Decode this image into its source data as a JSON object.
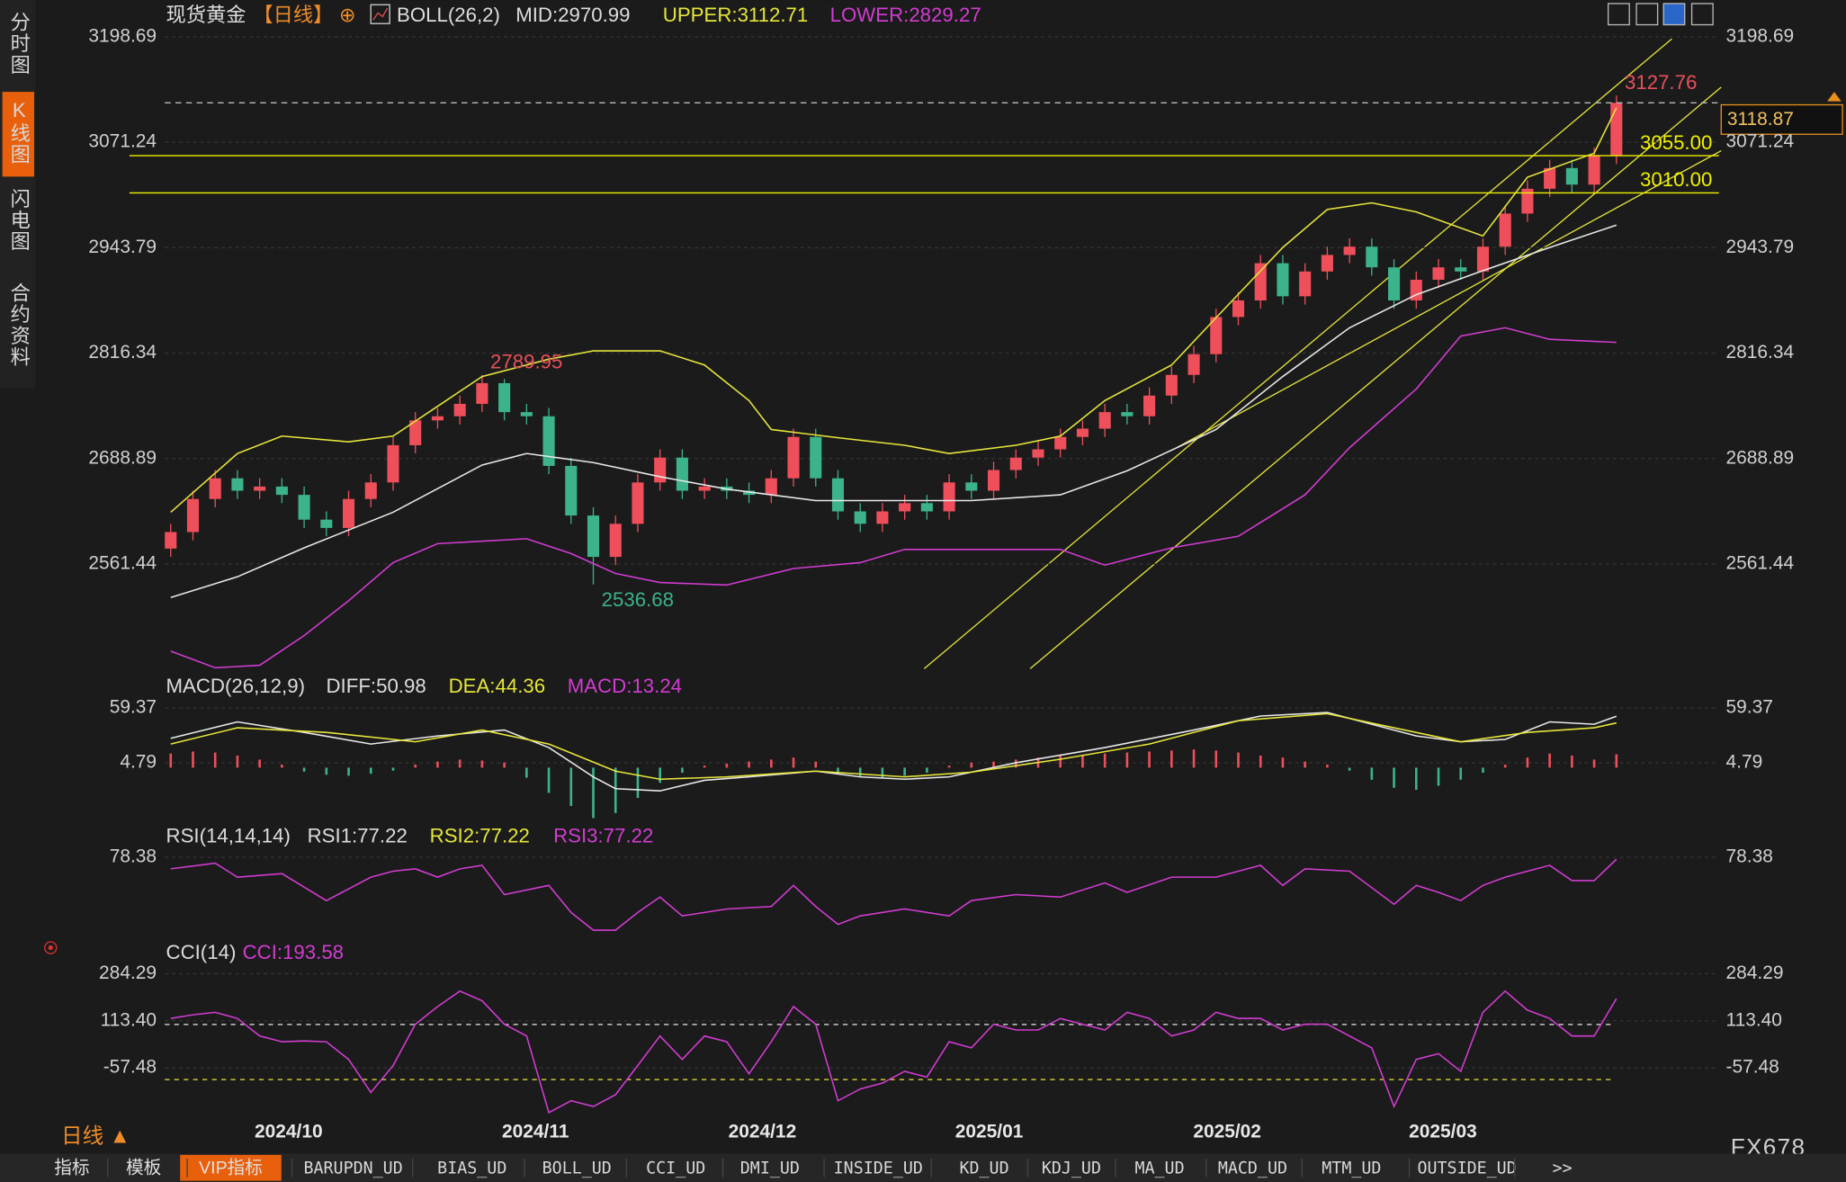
{
  "chart_data": [
    {
      "type": "candlestick",
      "legend": [
        {
          "text": "现货黄金",
          "color": "#dddddd"
        },
        {
          "text": "【日线】",
          "color": "#f08c28"
        },
        {
          "text": "⊕",
          "color": "#f08c28"
        },
        {
          "text": "BOLL(26,2)",
          "color": "#dddddd"
        },
        {
          "text": "MID:2970.99",
          "color": "#dddddd"
        },
        {
          "text": "UPPER:3112.71",
          "color": "#e6e63c"
        },
        {
          "text": "LOWER:2829.27",
          "color": "#d23cd2"
        }
      ],
      "xlim": [
        0,
        65
      ],
      "xticks": [
        {
          "value": 5.3,
          "label": "2024/10"
        },
        {
          "value": 16.4,
          "label": "2024/11"
        },
        {
          "value": 26.6,
          "label": "2024/12"
        },
        {
          "value": 36.8,
          "label": "2025/01"
        },
        {
          "value": 47.5,
          "label": "2025/02"
        },
        {
          "value": 57.2,
          "label": "2025/03"
        }
      ],
      "ylim": [
        2432,
        3236
      ],
      "yticks": [
        3198.69,
        3071.24,
        2943.79,
        2816.34,
        2688.89,
        2561.44
      ],
      "grid": true,
      "up_color": "#ef4f5a",
      "down_color": "#3cb38a",
      "open": [
        2580,
        2600,
        2640,
        2665,
        2650,
        2655,
        2645,
        2615,
        2605,
        2640,
        2660,
        2705,
        2735,
        2740,
        2755,
        2780,
        2745,
        2740,
        2680,
        2620,
        2570,
        2610,
        2660,
        2690,
        2650,
        2655,
        2650,
        2645,
        2665,
        2715,
        2665,
        2625,
        2610,
        2625,
        2635,
        2625,
        2660,
        2650,
        2675,
        2690,
        2700,
        2715,
        2725,
        2745,
        2740,
        2765,
        2790,
        2815,
        2860,
        2880,
        2925,
        2885,
        2915,
        2935,
        2945,
        2920,
        2880,
        2905,
        2920,
        2915,
        2945,
        2985,
        3015,
        3040,
        3020,
        3055
      ],
      "high": [
        2610,
        2650,
        2675,
        2675,
        2665,
        2665,
        2655,
        2625,
        2650,
        2670,
        2715,
        2745,
        2750,
        2765,
        2789.95,
        2785,
        2755,
        2750,
        2690,
        2630,
        2620,
        2670,
        2700,
        2700,
        2665,
        2665,
        2660,
        2675,
        2725,
        2725,
        2675,
        2635,
        2635,
        2645,
        2645,
        2670,
        2670,
        2685,
        2700,
        2710,
        2725,
        2735,
        2755,
        2755,
        2775,
        2800,
        2825,
        2870,
        2890,
        2935,
        2935,
        2925,
        2945,
        2955,
        2955,
        2930,
        2915,
        2930,
        2930,
        2955,
        2995,
        3025,
        3050,
        3050,
        3065,
        3127.76
      ],
      "low": [
        2570,
        2590,
        2630,
        2640,
        2640,
        2635,
        2605,
        2595,
        2595,
        2630,
        2650,
        2695,
        2725,
        2730,
        2745,
        2735,
        2730,
        2670,
        2610,
        2536.68,
        2560,
        2600,
        2650,
        2640,
        2640,
        2640,
        2635,
        2635,
        2655,
        2655,
        2615,
        2600,
        2600,
        2615,
        2615,
        2615,
        2640,
        2640,
        2665,
        2680,
        2690,
        2705,
        2715,
        2730,
        2730,
        2755,
        2780,
        2805,
        2850,
        2870,
        2875,
        2875,
        2905,
        2925,
        2910,
        2870,
        2870,
        2895,
        2905,
        2905,
        2935,
        2975,
        3005,
        3010,
        3010,
        3045
      ],
      "close": [
        2600,
        2640,
        2665,
        2650,
        2655,
        2645,
        2615,
        2605,
        2640,
        2660,
        2705,
        2735,
        2740,
        2755,
        2780,
        2745,
        2740,
        2680,
        2620,
        2570,
        2610,
        2660,
        2690,
        2650,
        2655,
        2650,
        2645,
        2665,
        2715,
        2665,
        2625,
        2610,
        2625,
        2635,
        2625,
        2660,
        2650,
        2675,
        2690,
        2700,
        2715,
        2725,
        2745,
        2740,
        2765,
        2790,
        2815,
        2860,
        2880,
        2925,
        2885,
        2915,
        2935,
        2945,
        2920,
        2880,
        2905,
        2920,
        2915,
        2945,
        2985,
        3015,
        3040,
        3020,
        3055,
        3118.87
      ],
      "series": [
        {
          "color": "#e6e63c",
          "x": [
            0,
            3,
            5,
            8,
            10,
            12,
            14,
            17,
            19,
            22,
            24,
            26,
            27,
            30,
            33,
            35,
            38,
            40,
            42,
            45,
            47,
            50,
            52,
            54,
            56,
            59,
            61,
            64,
            65
          ],
          "values": [
            2624,
            2695,
            2716,
            2709,
            2716,
            2752,
            2788,
            2809,
            2819,
            2819,
            2802,
            2759,
            2724,
            2714,
            2705,
            2695,
            2705,
            2716,
            2759,
            2802,
            2859,
            2944,
            2990,
            2998,
            2987,
            2958,
            3029,
            3058,
            3112.71
          ]
        },
        {
          "color": "#e8e8e8",
          "x": [
            0,
            3,
            6,
            10,
            14,
            16,
            19,
            22,
            25,
            29,
            33,
            36,
            40,
            43,
            47,
            50,
            53,
            56,
            59,
            62,
            65
          ],
          "values": [
            2521,
            2546,
            2581,
            2624,
            2681,
            2695,
            2684,
            2667,
            2652,
            2638,
            2638,
            2638,
            2645,
            2674,
            2724,
            2788,
            2847,
            2887,
            2916,
            2944,
            2970.99
          ]
        },
        {
          "color": "#d23cd2",
          "x": [
            0,
            2,
            4,
            6,
            8,
            10,
            12,
            16,
            18,
            20,
            22,
            25,
            28,
            31,
            33,
            36,
            40,
            42,
            45,
            48,
            51,
            53,
            56,
            58,
            60,
            62,
            65
          ],
          "values": [
            2456,
            2436,
            2439,
            2475,
            2517,
            2563,
            2586,
            2592,
            2574,
            2550,
            2539,
            2536,
            2556,
            2563,
            2579,
            2579,
            2579,
            2560,
            2581,
            2595,
            2645,
            2702,
            2773,
            2837,
            2847,
            2833,
            2829.27
          ]
        }
      ],
      "levels": [
        {
          "value": 3055,
          "label": "3055.00"
        },
        {
          "value": 3010,
          "label": "3010.00"
        }
      ],
      "level_color": "#f0f000",
      "annotations": [
        {
          "x": 14,
          "value": 2789.95,
          "color": "#e8505b"
        },
        {
          "x": 19,
          "value": 2536.68,
          "color": "#3cb38a"
        },
        {
          "x": 65,
          "value": 3127.76,
          "color": "#e8505b"
        }
      ]
    },
    {
      "type": "macd",
      "legend": [
        {
          "text": "MACD(26,12,9)",
          "color": "#dddddd"
        },
        {
          "text": "DIFF:50.98",
          "color": "#dddddd"
        },
        {
          "text": "DEA:44.36",
          "color": "#e6e63c"
        },
        {
          "text": "MACD:13.24",
          "color": "#d23cd2"
        }
      ],
      "ylim": [
        -56,
        90
      ],
      "yticks": [
        59.37,
        4.79
      ],
      "grid": true,
      "up_color": "#ef4f5a",
      "down_color": "#3cb38a",
      "histogram": [
        14,
        16,
        15,
        12,
        8,
        3,
        -4,
        -7,
        -8,
        -6,
        -3,
        3,
        6,
        8,
        7,
        5,
        -10,
        -25,
        -38,
        -50,
        -45,
        -30,
        -15,
        -5,
        2,
        4,
        6,
        8,
        10,
        6,
        -6,
        -9,
        -10,
        -8,
        -5,
        2,
        5,
        6,
        8,
        10,
        12,
        13,
        14,
        15,
        16,
        17,
        18,
        17,
        15,
        12,
        10,
        6,
        3,
        -3,
        -12,
        -20,
        -22,
        -18,
        -12,
        -5,
        3,
        10,
        14,
        12,
        8,
        13.24
      ],
      "series": [
        {
          "color": "#e8e8e8",
          "x": [
            0,
            3,
            6,
            9,
            12,
            15,
            17,
            19,
            20,
            22,
            24,
            26,
            29,
            31,
            33,
            35,
            38,
            42,
            46,
            49,
            52,
            54,
            56,
            58,
            60,
            62,
            64,
            65
          ],
          "values": [
            29.2,
            45.4,
            35,
            23.4,
            31.5,
            37.3,
            19.9,
            -9.2,
            -20.8,
            -23.1,
            -12.6,
            -9.2,
            -3.4,
            -9.2,
            -11.5,
            -9.2,
            4.8,
            19.9,
            37.3,
            51.2,
            54.7,
            43.1,
            31.5,
            25.7,
            28,
            45.4,
            43.1,
            50.98
          ]
        },
        {
          "color": "#e6e63c",
          "x": [
            0,
            3,
            7,
            11,
            14,
            17,
            20,
            22,
            25,
            29,
            33,
            36,
            40,
            44,
            48,
            52,
            55,
            58,
            61,
            64,
            65
          ],
          "values": [
            23.4,
            39.6,
            35,
            25.7,
            37.3,
            23.4,
            -3.4,
            -11.5,
            -9.2,
            -3.4,
            -9.2,
            -4.5,
            8.3,
            23.4,
            46.6,
            53.6,
            39.6,
            25.7,
            35,
            39.6,
            44.36
          ]
        }
      ]
    },
    {
      "type": "line",
      "legend": [
        {
          "text": "RSI(14,14,14)",
          "color": "#dddddd"
        },
        {
          "text": "RSI1:77.22",
          "color": "#dddddd"
        },
        {
          "text": "RSI2:77.22",
          "color": "#e6e63c"
        },
        {
          "text": "RSI3:77.22",
          "color": "#d23cd2"
        }
      ],
      "ylim": [
        30,
        94
      ],
      "yticks": [
        78.38
      ],
      "grid": true,
      "series": [
        {
          "color": "#d23cd2",
          "x": [
            0,
            2,
            3,
            5,
            7,
            9,
            10,
            11,
            12,
            13,
            14,
            15,
            17,
            18,
            19,
            20,
            21,
            22,
            23,
            25,
            27,
            28,
            29,
            30,
            31,
            33,
            35,
            36,
            38,
            40,
            42,
            43,
            45,
            47,
            48,
            49,
            50,
            51,
            53,
            55,
            56,
            57,
            58,
            59,
            60,
            61,
            62,
            63,
            64,
            65
          ],
          "values": [
            71.8,
            75,
            67,
            69,
            53.6,
            67,
            70.4,
            71.8,
            67,
            71.8,
            73.8,
            57,
            62.3,
            46.8,
            36.7,
            36.7,
            46.8,
            55.6,
            44.8,
            48.8,
            50.2,
            62.3,
            50.2,
            40,
            44.8,
            48.8,
            44.8,
            53.6,
            57,
            55.6,
            63.7,
            58.3,
            67,
            67,
            70.4,
            73.8,
            62.3,
            71.8,
            70.4,
            51.5,
            62.3,
            58.3,
            53.6,
            62.3,
            67,
            70.4,
            73.8,
            65,
            65,
            77.22
          ]
        }
      ]
    },
    {
      "type": "line",
      "legend": [
        {
          "text": "CCI(14)",
          "color": "#dddddd"
        },
        {
          "text": "CCI:193.58",
          "color": "#d23cd2"
        }
      ],
      "ylim": [
        -241,
        400
      ],
      "yticks": [
        284.29,
        {
          "value": 113.4,
          "label": "113.40"
        },
        -57.48
      ],
      "grid": true,
      "levels": [
        {
          "value": 100,
          "color": "#e8e8e8"
        },
        {
          "value": -100,
          "color": "#e6e63c"
        }
      ],
      "series": [
        {
          "color": "#d23cd2",
          "values": [
            122,
            135,
            144,
            122,
            58,
            37,
            40,
            37,
            -27,
            -147,
            -49,
            101,
            165,
            221,
            186,
            101,
            58,
            -220,
            -177,
            -198,
            -155,
            -49,
            58,
            -27,
            58,
            37,
            -79,
            37,
            165,
            101,
            -177,
            -134,
            -113,
            -70,
            -91,
            37,
            15,
            101,
            80,
            80,
            122,
            101,
            80,
            144,
            122,
            58,
            80,
            144,
            122,
            122,
            80,
            101,
            101,
            58,
            15,
            -198,
            -27,
            -6,
            -70,
            144,
            221,
            152,
            122,
            58,
            58,
            193.58
          ]
        }
      ]
    }
  ],
  "sidebar": [
    "分时图",
    "K线图",
    "闪电图",
    "合约资料"
  ],
  "footer": {
    "period": "日线 ▲",
    "brand": "FX678",
    "tabs": [
      "指标",
      "模板",
      "VIP指标",
      "BARUPDN_UD",
      "BIAS_UD",
      "BOLL_UD",
      "CCI_UD",
      "DMI_UD",
      "INSIDE_UD",
      "KD_UD",
      "KDJ_UD",
      "MA_UD",
      "MACD_UD",
      "MTM_UD",
      "OUTSIDE_UD",
      ">>"
    ]
  }
}
